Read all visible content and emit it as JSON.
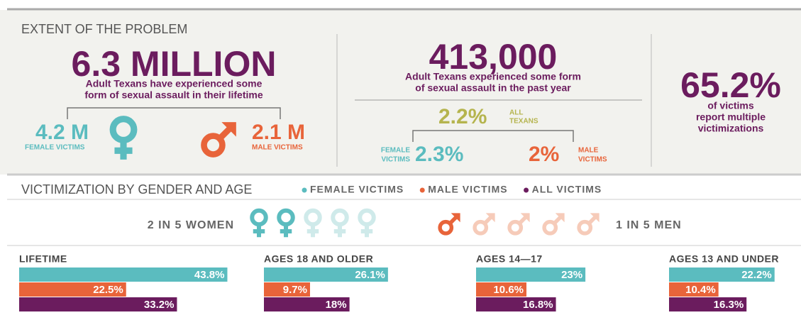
{
  "extent": {
    "heading": "EXTENT OF THE PROBLEM",
    "lifetime": {
      "number": "6.3 MILLION",
      "text_lines": [
        "Adult Texans have experienced some",
        "form of sexual assault in their lifetime"
      ],
      "female": {
        "number": "4.2 M",
        "label": "FEMALE VICTIMS"
      },
      "male": {
        "number": "2.1 M",
        "label": "MALE VICTIMS"
      }
    },
    "past_year": {
      "number": "413,000",
      "text_lines": [
        "Adult Texans experienced some form",
        "of sexual assault in the past year"
      ],
      "all": {
        "number": "2.2%",
        "label_lines": [
          "ALL",
          "TEXANS"
        ]
      },
      "female": {
        "number": "2.3%",
        "label_lines": [
          "FEMALE",
          "VICTIMS"
        ]
      },
      "male": {
        "number": "2%",
        "label_lines": [
          "MALE",
          "VICTIMS"
        ]
      }
    },
    "multiple": {
      "number": "65.2%",
      "text_lines": [
        "of victims",
        "report multiple",
        "victimizations"
      ]
    }
  },
  "victimization": {
    "heading": "VICTIMIZATION BY GENDER AND AGE",
    "legend": [
      {
        "name": "FEMALE VICTIMS",
        "color": "#5bbcbf"
      },
      {
        "name": "MALE VICTIMS",
        "color": "#e8643a"
      },
      {
        "name": "ALL VICTIMS",
        "color": "#6b1c5e"
      }
    ],
    "women": "2 IN 5 WOMEN",
    "men": "1 IN 5 MEN"
  },
  "chart_data": [
    {
      "type": "bar",
      "title": "LIFETIME",
      "values": [
        43.8,
        22.5,
        33.2
      ],
      "value_labels": [
        "43.8%",
        "22.5%",
        "33.2%"
      ]
    },
    {
      "type": "bar",
      "title": "AGES 18 AND OLDER",
      "values": [
        26.1,
        9.7,
        18
      ],
      "value_labels": [
        "26.1%",
        "9.7%",
        "18%"
      ]
    },
    {
      "type": "bar",
      "title": "AGES 14—17",
      "values": [
        23,
        10.6,
        16.8
      ],
      "value_labels": [
        "23%",
        "10.6%",
        "16.8%"
      ]
    },
    {
      "type": "bar",
      "title": "AGES 13 AND UNDER",
      "values": [
        22.2,
        10.4,
        16.3
      ],
      "value_labels": [
        "22.2%",
        "10.4%",
        "16.3%"
      ]
    }
  ]
}
